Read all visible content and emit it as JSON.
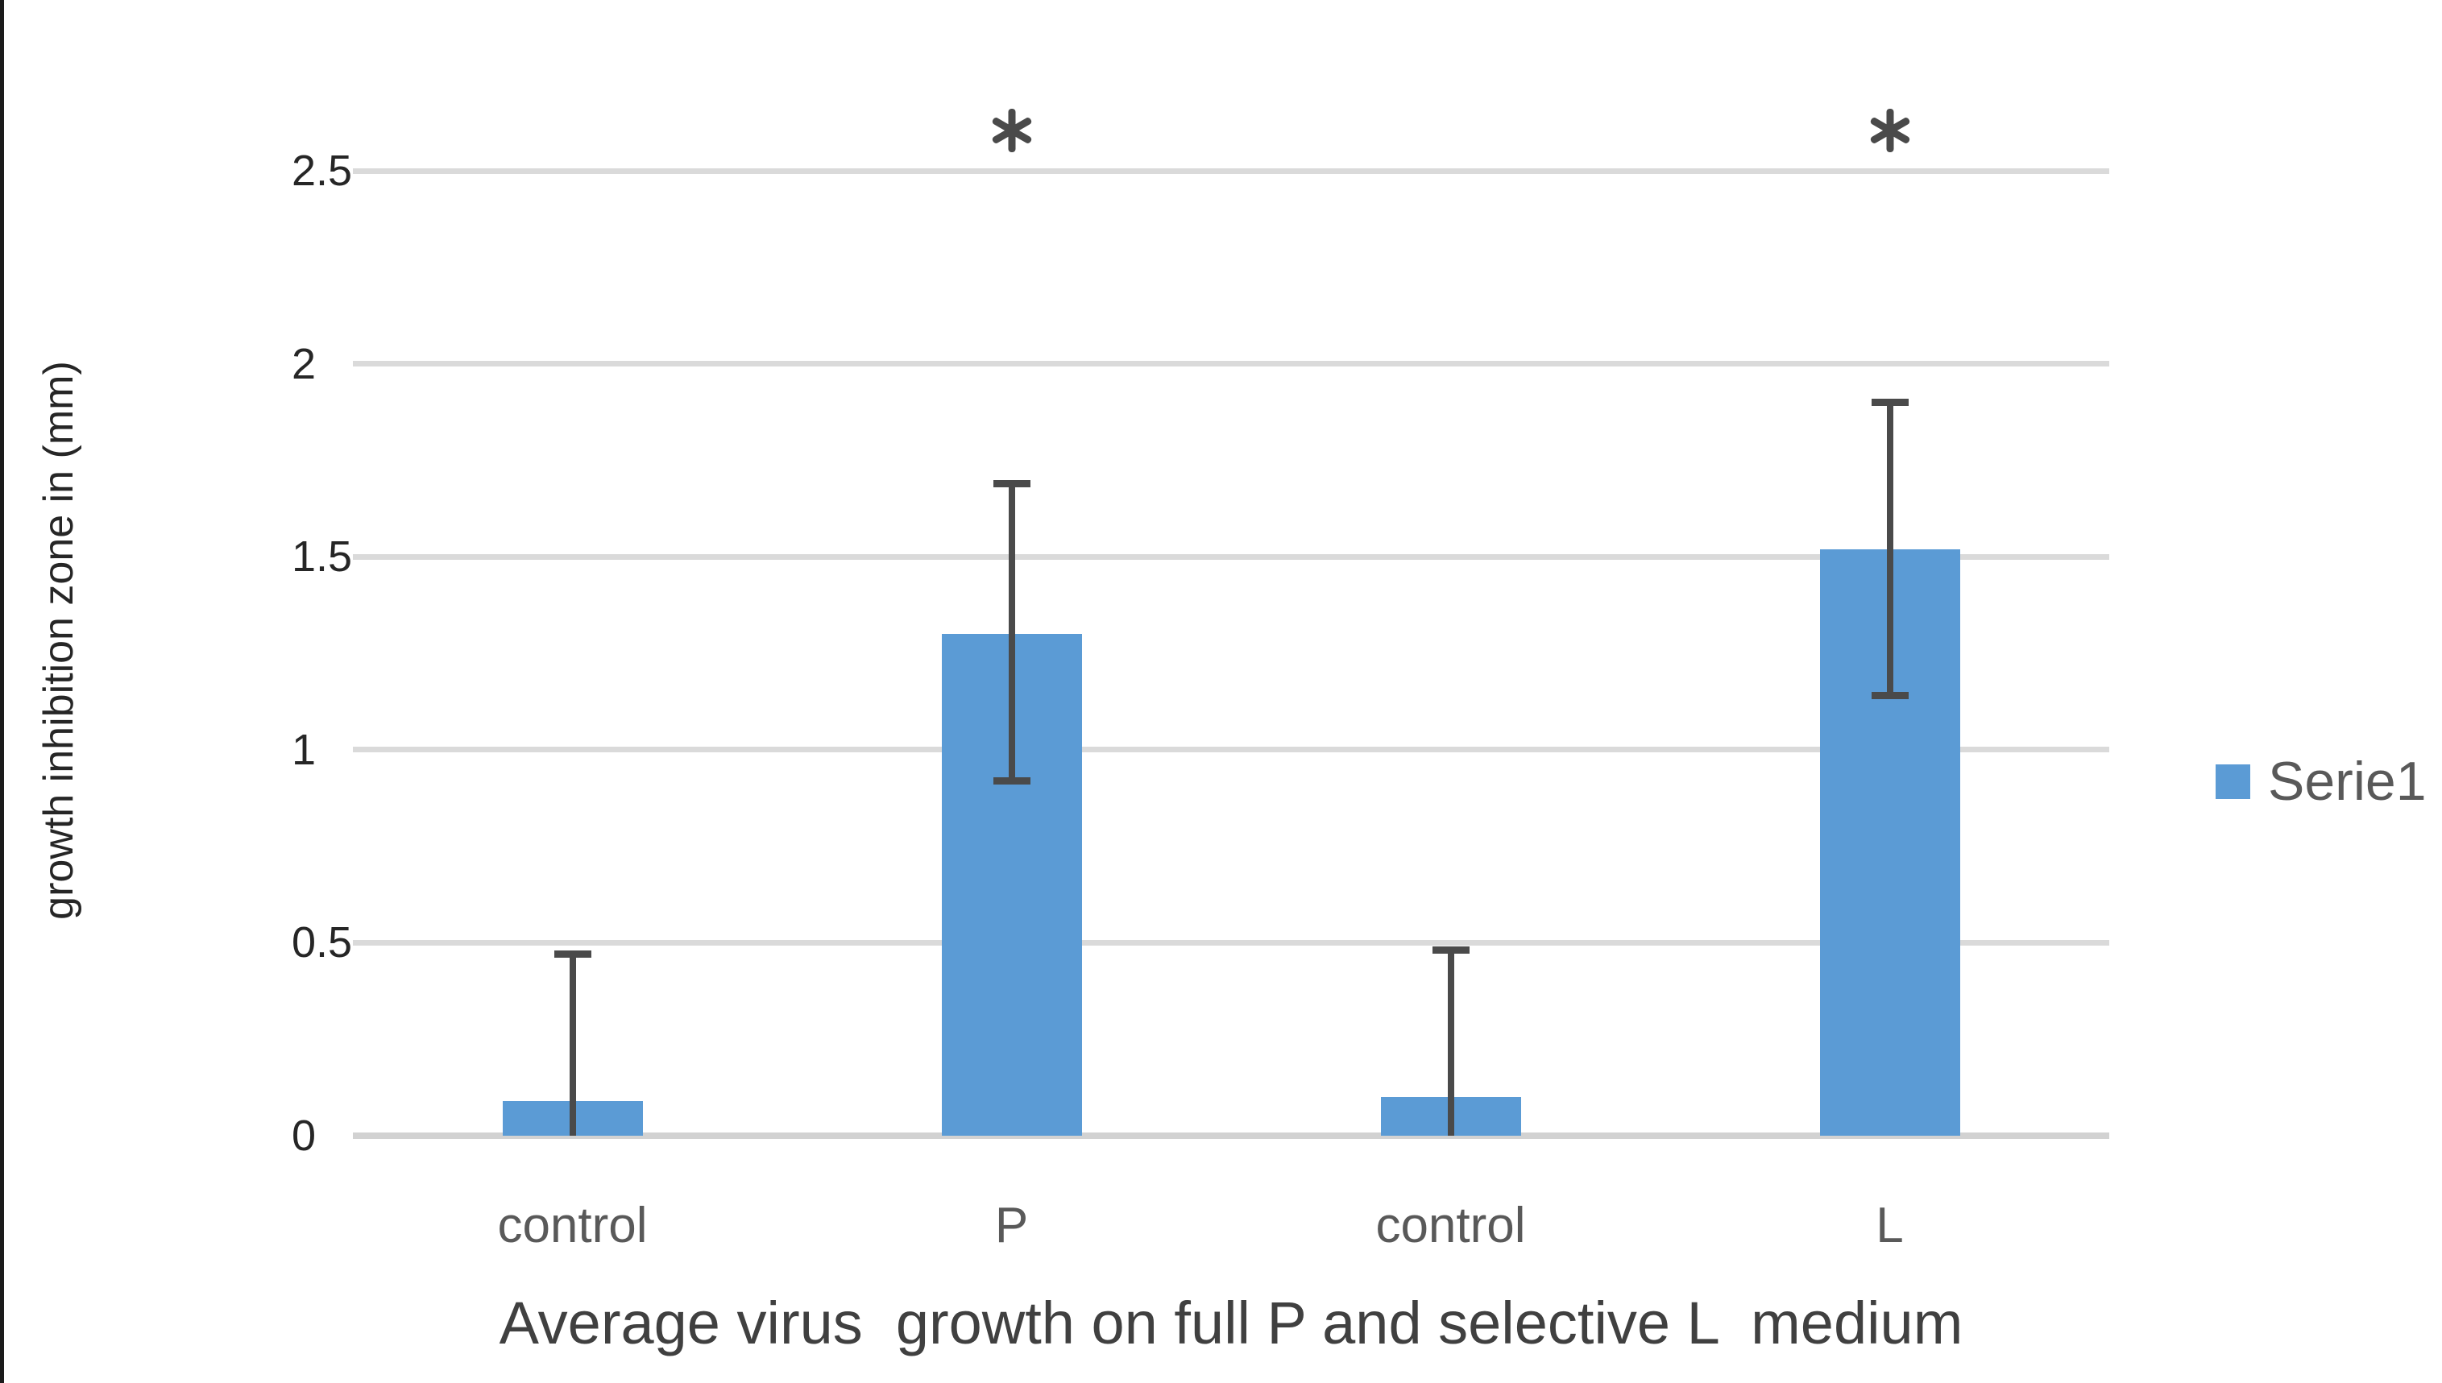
{
  "chart_data": {
    "type": "bar",
    "title": "",
    "xlabel": "Average virus  growth on full P and selective L  medium",
    "ylabel": "growth inhibition zone in (mm)",
    "categories": [
      "control",
      "P",
      "control",
      "L"
    ],
    "series": [
      {
        "name": "Serie1",
        "values": [
          0.09,
          1.3,
          0.1,
          1.52
        ],
        "error_top": [
          0.47,
          1.69,
          0.48,
          1.9
        ],
        "error_bottom": [
          0,
          0.92,
          0,
          1.14
        ]
      }
    ],
    "significance_markers": [
      {
        "category_index": 1,
        "symbol": "*"
      },
      {
        "category_index": 3,
        "symbol": "*"
      }
    ],
    "ylim": [
      0,
      2.5
    ],
    "yticks": [
      "0",
      "0.5",
      "1",
      "1.5",
      "2",
      "2.5"
    ],
    "grid": true,
    "legend": {
      "label": "Serie1",
      "position": "right"
    },
    "colors": {
      "bar": "#5B9BD5",
      "error_bar": "#4A4A4A",
      "gridline": "#DADADA",
      "tick_label": "#262626",
      "category_label": "#595959",
      "x_title": "#404040",
      "y_title": "#262626",
      "legend_text": "#595959",
      "asterisk": "#4A4A4A"
    }
  }
}
